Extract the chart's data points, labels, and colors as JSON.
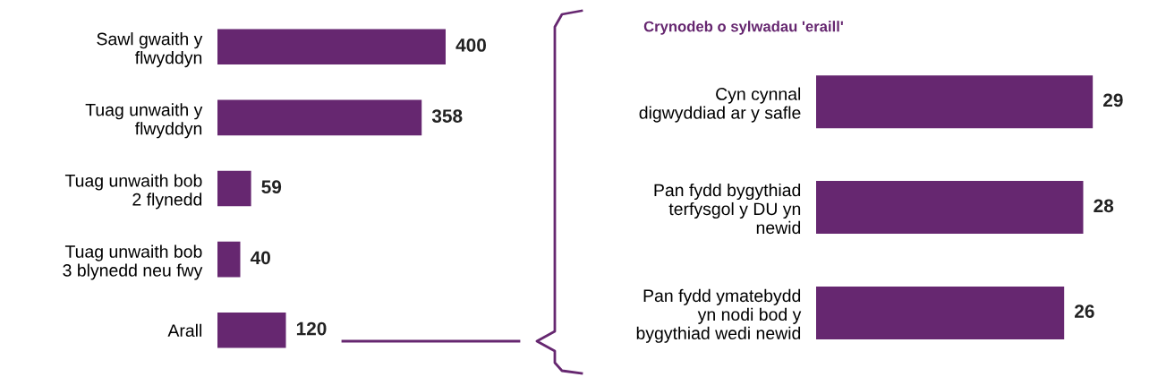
{
  "chart_data": [
    {
      "type": "bar",
      "orientation": "horizontal",
      "categories": [
        "Sawl gwaith y\nflwyddyn",
        "Tuag unwaith y\nflwyddyn",
        "Tuag unwaith bob\n2 flynedd",
        "Tuag unwaith bob\n3 blynedd neu fwy",
        "Arall"
      ],
      "values": [
        400,
        358,
        59,
        40,
        120
      ],
      "color": "#662770",
      "data_labels": true,
      "tick_labels": "y",
      "grid": false,
      "legend": false
    },
    {
      "type": "bar",
      "orientation": "horizontal",
      "title": "Crynodeb o sylwadau 'eraill'",
      "categories": [
        "Cyn cynnal\ndigwyddiad ar y safle",
        "Pan fydd bygythiad\nterfysgol y DU yn\nnewid",
        "Pan fydd ymatebydd\nyn nodi bod y\nbygythiad wedi newid"
      ],
      "values": [
        29,
        28,
        26
      ],
      "color": "#662770",
      "data_labels": true,
      "tick_labels": "y",
      "grid": false,
      "legend": false
    }
  ]
}
